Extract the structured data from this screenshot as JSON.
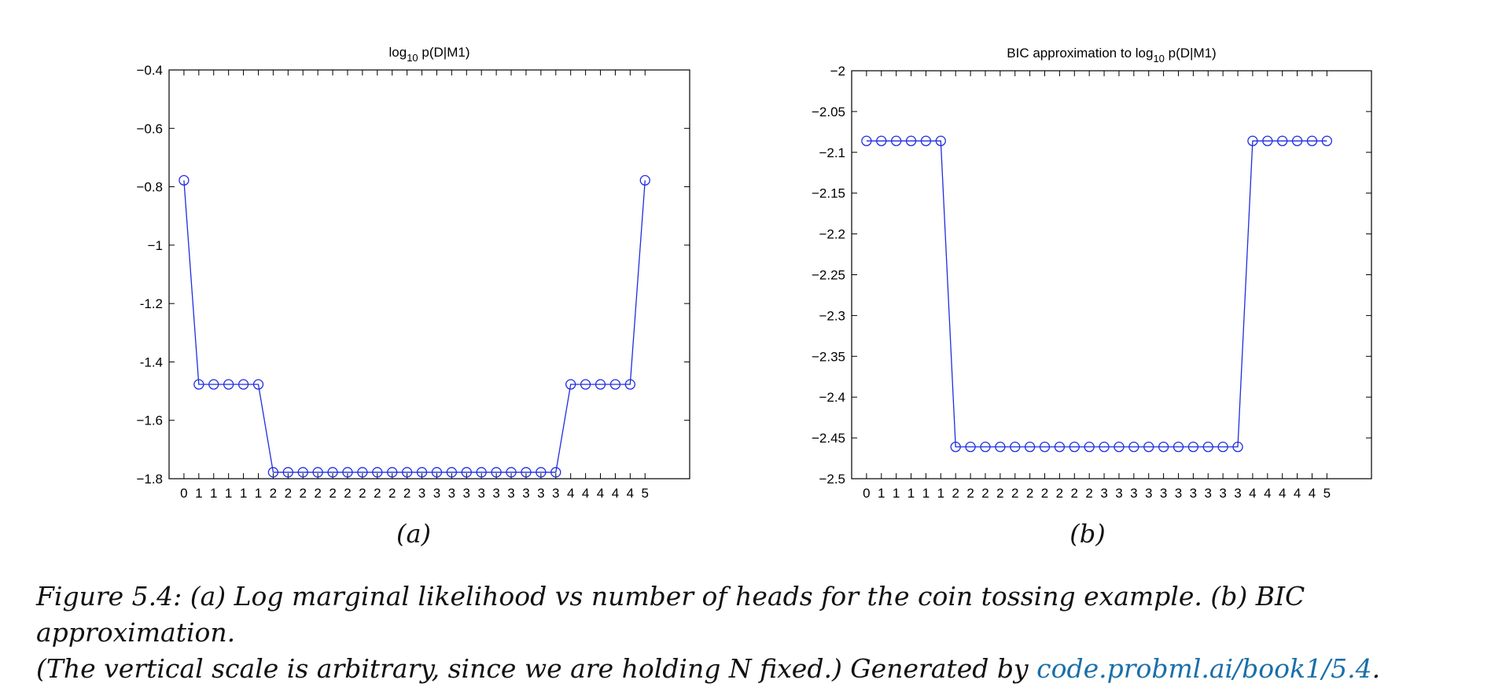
{
  "chart_data": [
    {
      "type": "line",
      "title_prefix": "log",
      "title_sub": "10",
      "title_suffix": " p(D|M1)",
      "categories": [
        "0",
        "1",
        "1",
        "1",
        "1",
        "1",
        "2",
        "2",
        "2",
        "2",
        "2",
        "2",
        "2",
        "2",
        "2",
        "2",
        "3",
        "3",
        "3",
        "3",
        "3",
        "3",
        "3",
        "3",
        "3",
        "3",
        "4",
        "4",
        "4",
        "4",
        "4",
        "5"
      ],
      "values": [
        -0.778,
        -1.477,
        -1.477,
        -1.477,
        -1.477,
        -1.477,
        -1.778,
        -1.778,
        -1.778,
        -1.778,
        -1.778,
        -1.778,
        -1.778,
        -1.778,
        -1.778,
        -1.778,
        -1.778,
        -1.778,
        -1.778,
        -1.778,
        -1.778,
        -1.778,
        -1.778,
        -1.778,
        -1.778,
        -1.778,
        -1.477,
        -1.477,
        -1.477,
        -1.477,
        -1.477,
        -0.778
      ],
      "xlim": [
        0,
        35
      ],
      "ylim": [
        -1.8,
        -0.4
      ],
      "yticks": [
        -0.4,
        -0.6,
        -0.8,
        -1,
        -1.2,
        -1.4,
        -1.6,
        -1.8
      ],
      "ytick_labels": [
        "−0.4",
        "−0.6",
        "−0.8",
        "−1",
        "-1.2",
        "-1.4",
        "−1.6",
        "−1.8"
      ],
      "marker": "circle",
      "color": "#1f2de0"
    },
    {
      "type": "line",
      "title_prefix": "BIC approximation to log",
      "title_sub": "10",
      "title_suffix": " p(D|M1)",
      "categories": [
        "0",
        "1",
        "1",
        "1",
        "1",
        "1",
        "2",
        "2",
        "2",
        "2",
        "2",
        "2",
        "2",
        "2",
        "2",
        "2",
        "3",
        "3",
        "3",
        "3",
        "3",
        "3",
        "3",
        "3",
        "3",
        "3",
        "4",
        "4",
        "4",
        "4",
        "4",
        "5"
      ],
      "values": [
        -2.086,
        -2.086,
        -2.086,
        -2.086,
        -2.086,
        -2.086,
        -2.461,
        -2.461,
        -2.461,
        -2.461,
        -2.461,
        -2.461,
        -2.461,
        -2.461,
        -2.461,
        -2.461,
        -2.461,
        -2.461,
        -2.461,
        -2.461,
        -2.461,
        -2.461,
        -2.461,
        -2.461,
        -2.461,
        -2.461,
        -2.086,
        -2.086,
        -2.086,
        -2.086,
        -2.086,
        -2.086
      ],
      "xlim": [
        0,
        35
      ],
      "ylim": [
        -2.5,
        -2.0
      ],
      "yticks": [
        -2,
        -2.05,
        -2.1,
        -2.15,
        -2.2,
        -2.25,
        -2.3,
        -2.35,
        -2.4,
        -2.45,
        -2.5
      ],
      "ytick_labels": [
        "−2",
        "−2.05",
        "−2.1",
        "−2.15",
        "−2.2",
        "−2.25",
        "−2.3",
        "−2.35",
        "−2.4",
        "−2.45",
        "−2.5"
      ],
      "marker": "circle",
      "color": "#1f2de0"
    }
  ],
  "panel_labels": [
    "(a)",
    "(b)"
  ],
  "caption": {
    "line1": "Figure 5.4: (a) Log marginal likelihood vs number of heads for the coin tossing example.  (b) BIC approximation.",
    "line2_prefix": "(The vertical scale is arbitrary, since we are holding N fixed.)  Generated by ",
    "link_text": "code.probml.ai/book1/5.4",
    "line2_suffix": "."
  }
}
